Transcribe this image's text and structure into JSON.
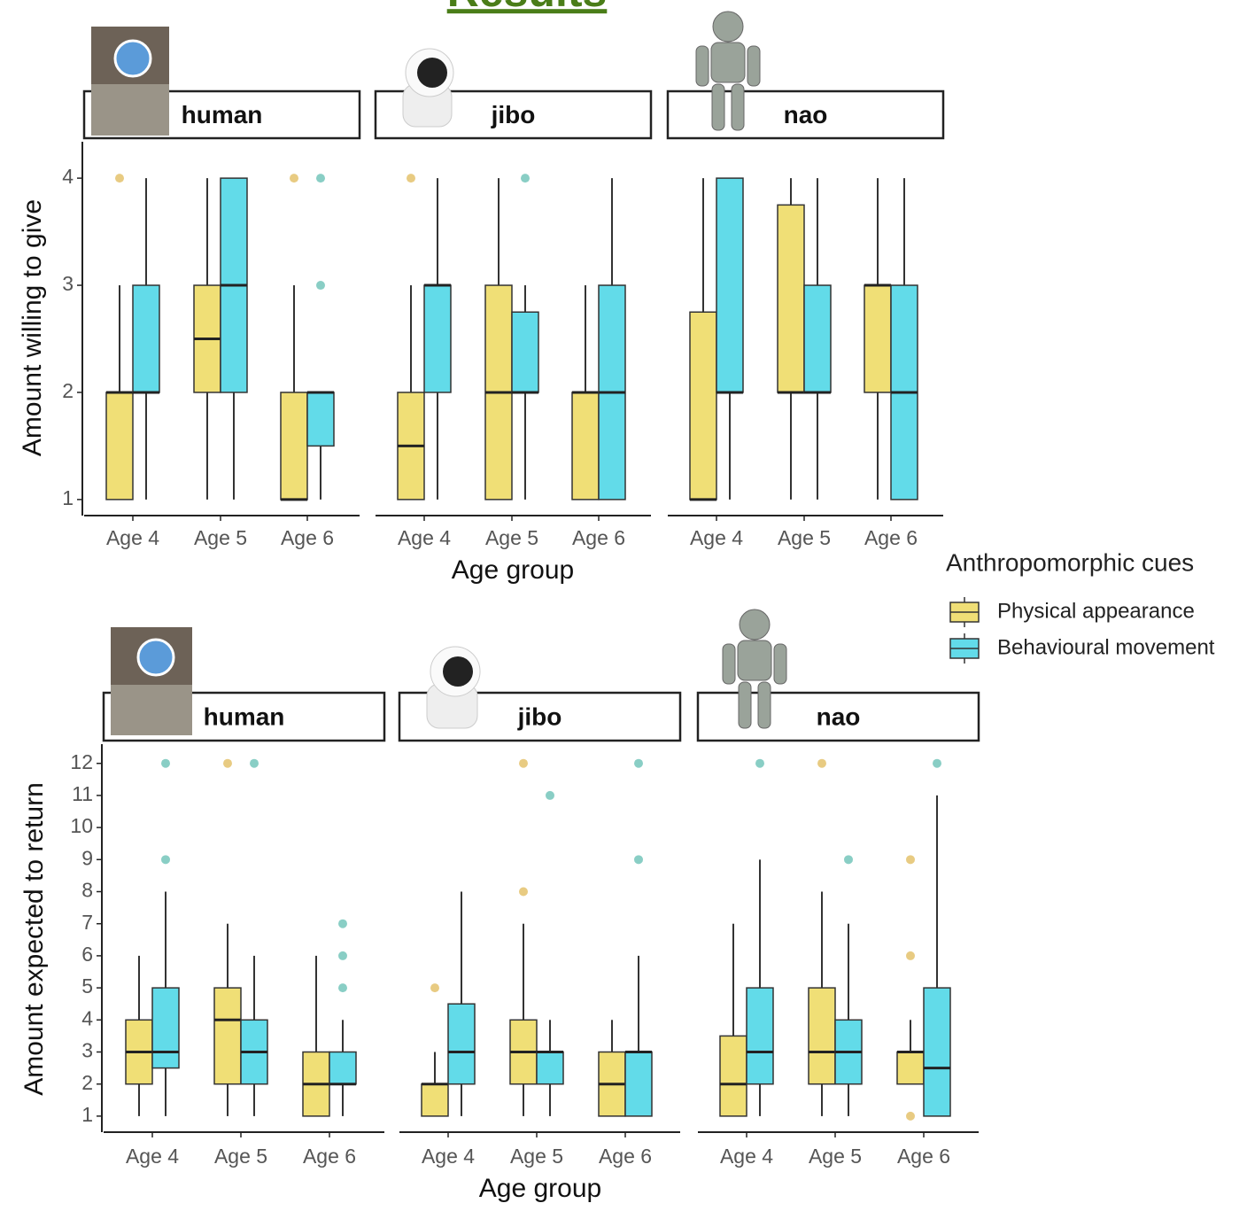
{
  "title": "Results",
  "legend": {
    "title": "Anthropomorphic cues",
    "entries": [
      {
        "name": "Physical appearance",
        "color": "#f0df76",
        "point_color": "#d9a92e"
      },
      {
        "name": "Behavioural movement",
        "color": "#62dbe9",
        "point_color": "#3aae9f"
      }
    ]
  },
  "chart_data": [
    {
      "type": "box",
      "y_label": "Amount willing to give",
      "x_label": "Age group",
      "facets": [
        "human",
        "jibo",
        "nao"
      ],
      "categories": [
        "Age 4",
        "Age 5",
        "Age 6"
      ],
      "ylim": [
        0.85,
        4.34
      ],
      "yticks": [
        1,
        2,
        3,
        4
      ],
      "series": [
        {
          "boxes": [
            [
              [
                1,
                1,
                2,
                2,
                3
              ],
              [
                1,
                2,
                2.5,
                3,
                4
              ],
              [
                1,
                1,
                1,
                2,
                3
              ]
            ],
            [
              [
                1,
                1,
                1.5,
                2,
                3
              ],
              [
                1,
                1,
                2,
                3,
                4
              ],
              [
                1,
                1,
                2,
                2,
                3
              ]
            ],
            [
              [
                1,
                1,
                1,
                2.75,
                4
              ],
              [
                1,
                2,
                2,
                3.75,
                4
              ],
              [
                1,
                2,
                3,
                3,
                4
              ]
            ]
          ],
          "outliers": [
            [
              [
                4
              ],
              [],
              [
                4
              ]
            ],
            [
              [
                4
              ],
              [],
              []
            ],
            [
              [],
              [],
              []
            ]
          ]
        },
        {
          "boxes": [
            [
              [
                1,
                2,
                2,
                3,
                4
              ],
              [
                1,
                2,
                3,
                4,
                4
              ],
              [
                1,
                1.5,
                2,
                2,
                2
              ]
            ],
            [
              [
                1,
                2,
                3,
                3,
                4
              ],
              [
                1,
                2,
                2,
                2.75,
                3
              ],
              [
                1,
                1,
                2,
                3,
                4
              ]
            ],
            [
              [
                1,
                2,
                2,
                4,
                4
              ],
              [
                1,
                2,
                2,
                3,
                4
              ],
              [
                1,
                1,
                2,
                3,
                4
              ]
            ]
          ],
          "outliers": [
            [
              [],
              [],
              [
                3,
                4
              ]
            ],
            [
              [],
              [
                4
              ],
              []
            ],
            [
              [],
              [],
              []
            ]
          ]
        }
      ]
    },
    {
      "type": "box",
      "y_label": "Amount expected to return",
      "x_label": "Age group",
      "facets": [
        "human",
        "jibo",
        "nao"
      ],
      "categories": [
        "Age 4",
        "Age 5",
        "Age 6"
      ],
      "ylim": [
        0.5,
        12.6
      ],
      "yticks": [
        1,
        2,
        3,
        4,
        5,
        6,
        7,
        8,
        9,
        10,
        11,
        12
      ],
      "series": [
        {
          "boxes": [
            [
              [
                1,
                2,
                3,
                4,
                6
              ],
              [
                1,
                2,
                4,
                5,
                7
              ],
              [
                1,
                1,
                2,
                3,
                6
              ]
            ],
            [
              [
                1,
                1,
                2,
                2,
                3
              ],
              [
                1,
                2,
                3,
                4,
                7
              ],
              [
                1,
                1,
                2,
                3,
                4
              ]
            ],
            [
              [
                1,
                1,
                2,
                3.5,
                7
              ],
              [
                1,
                2,
                3,
                5,
                8
              ],
              [
                2,
                2,
                3,
                3,
                4
              ]
            ]
          ],
          "outliers": [
            [
              [],
              [
                12
              ],
              []
            ],
            [
              [
                5
              ],
              [
                8,
                12
              ],
              []
            ],
            [
              [],
              [
                12
              ],
              [
                1,
                6,
                9
              ]
            ]
          ]
        },
        {
          "boxes": [
            [
              [
                1,
                2.5,
                3,
                5,
                8
              ],
              [
                1,
                2,
                3,
                4,
                6
              ],
              [
                1,
                2,
                2,
                3,
                4
              ]
            ],
            [
              [
                1,
                2,
                3,
                4.5,
                8
              ],
              [
                1,
                2,
                3,
                3,
                4
              ],
              [
                1,
                1,
                3,
                3,
                6
              ]
            ],
            [
              [
                1,
                2,
                3,
                5,
                9
              ],
              [
                1,
                2,
                3,
                4,
                7
              ],
              [
                1,
                1,
                2.5,
                5,
                11
              ]
            ]
          ],
          "outliers": [
            [
              [
                9,
                12
              ],
              [
                12
              ],
              [
                5,
                6,
                7
              ]
            ],
            [
              [],
              [
                11
              ],
              [
                9,
                12
              ]
            ],
            [
              [
                12
              ],
              [
                9
              ],
              [
                12
              ]
            ]
          ]
        }
      ]
    }
  ]
}
